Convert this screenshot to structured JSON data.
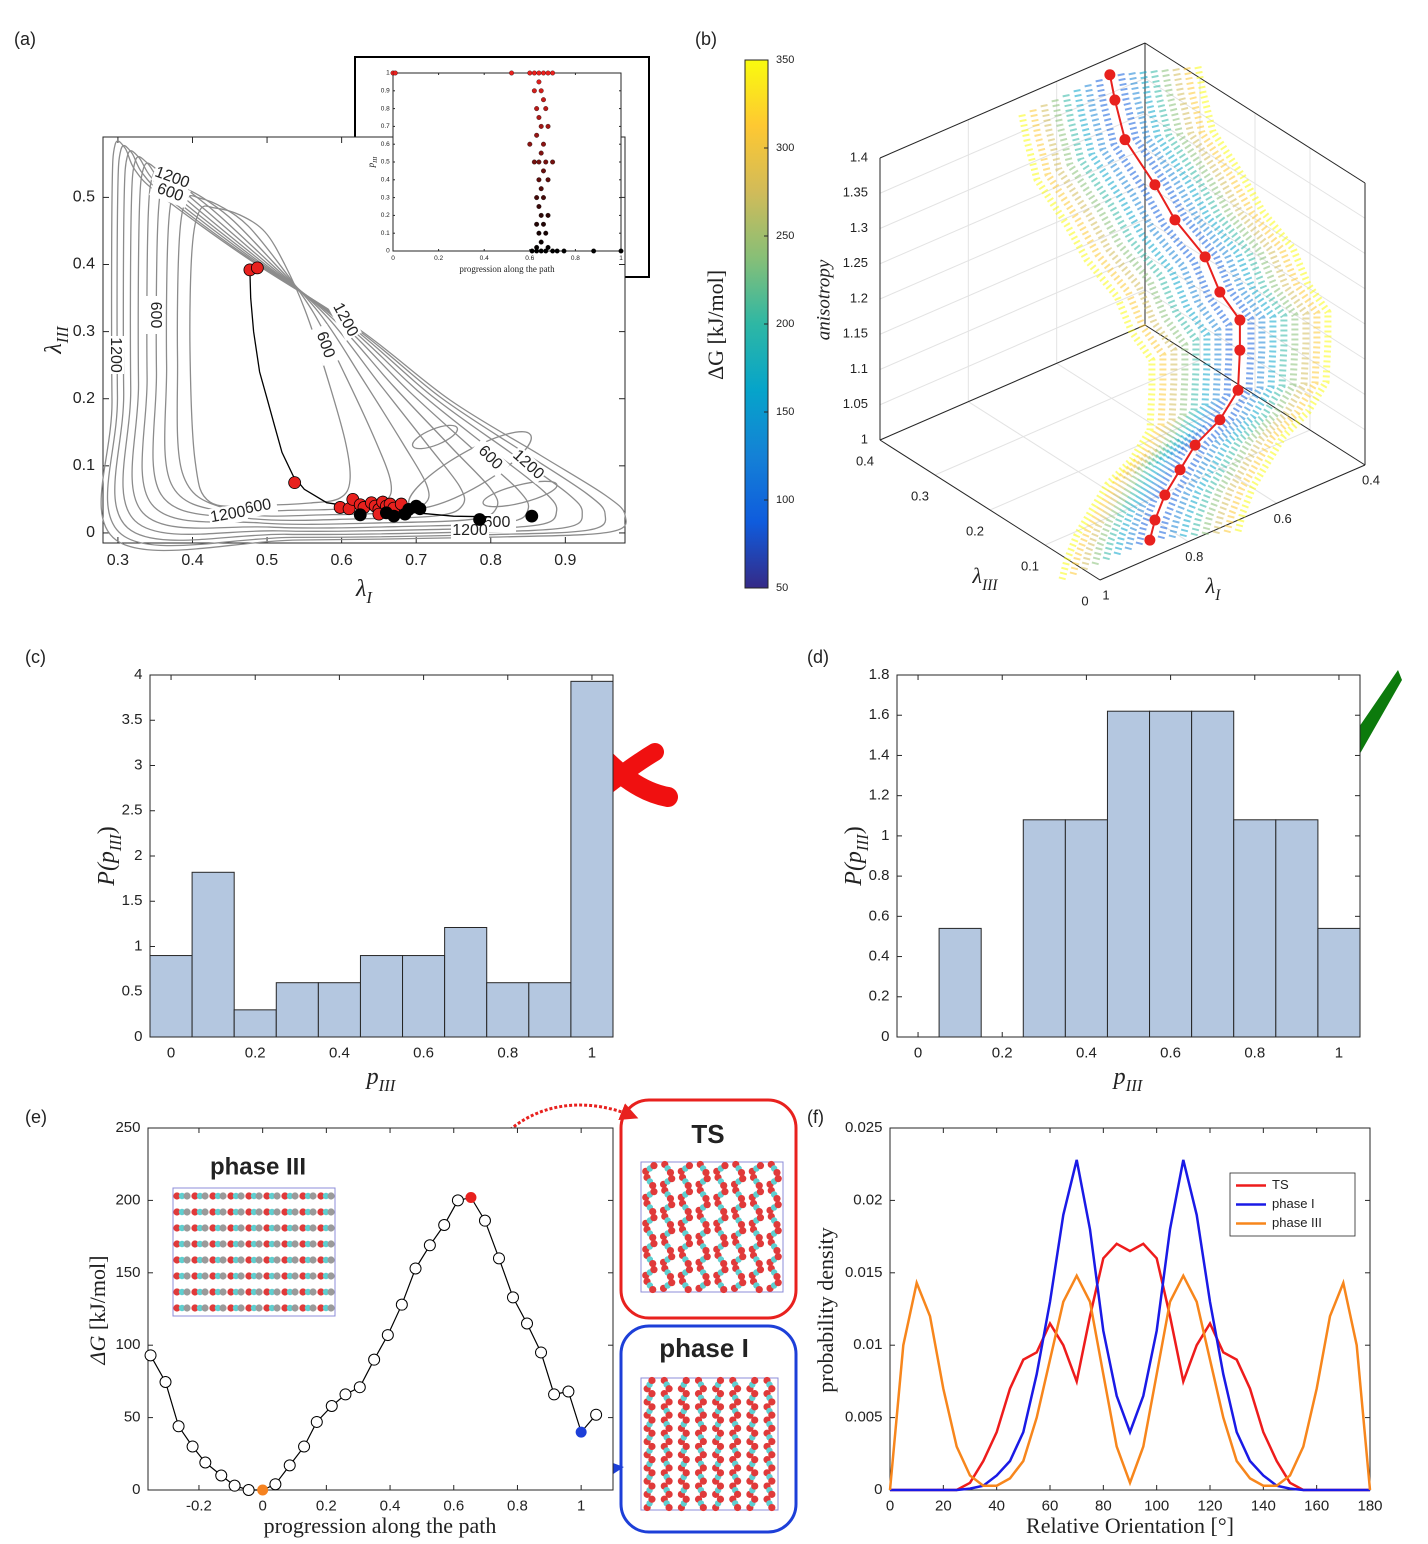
{
  "chart_data": [
    {
      "type": "contour",
      "panel": "(a)",
      "xlabel": {
        "text": "λ",
        "sub": "I"
      },
      "ylabel": {
        "text": "λ",
        "sub": "III"
      },
      "xlim": [
        0.28,
        0.98
      ],
      "ylim": [
        -0.015,
        0.59
      ],
      "xticks": [
        0.3,
        0.4,
        0.5,
        0.6,
        0.7,
        0.8,
        0.9
      ],
      "yticks": [
        0,
        0.1,
        0.2,
        0.3,
        0.4,
        0.5
      ],
      "contour_labels": [
        1200,
        600,
        600,
        1200,
        1200,
        600,
        600,
        1200,
        600,
        1200,
        600,
        1200
      ],
      "path": {
        "color": "#000000",
        "x": [
          0.477,
          0.478,
          0.482,
          0.49,
          0.5,
          0.51,
          0.52,
          0.535,
          0.55,
          0.58,
          0.62,
          0.66,
          0.7,
          0.75,
          0.8
        ],
        "y": [
          0.39,
          0.35,
          0.3,
          0.24,
          0.2,
          0.16,
          0.12,
          0.085,
          0.065,
          0.045,
          0.038,
          0.035,
          0.03,
          0.025,
          0.024
        ]
      },
      "points": [
        {
          "color": "#e8211e",
          "x": [
            0.477,
            0.487,
            0.537,
            0.598,
            0.61,
            0.615,
            0.625,
            0.63,
            0.64,
            0.645,
            0.65,
            0.655,
            0.66,
            0.665,
            0.67,
            0.68,
            0.65
          ],
          "y": [
            0.392,
            0.395,
            0.075,
            0.038,
            0.036,
            0.05,
            0.042,
            0.038,
            0.045,
            0.04,
            0.035,
            0.046,
            0.04,
            0.043,
            0.037,
            0.043,
            0.028
          ]
        },
        {
          "color": "#000000",
          "x": [
            0.625,
            0.66,
            0.67,
            0.685,
            0.7,
            0.705,
            0.785,
            0.855,
            0.69
          ],
          "y": [
            0.027,
            0.03,
            0.025,
            0.028,
            0.04,
            0.036,
            0.02,
            0.025,
            0.035
          ]
        }
      ]
    },
    {
      "type": "scatter",
      "xlabel": "progression along the path",
      "ylabel": {
        "text": "p",
        "sub": "III"
      },
      "xlim": [
        0,
        1
      ],
      "ylim": [
        0,
        1
      ],
      "xticks": [
        0,
        0.2,
        0.4,
        0.6,
        0.8,
        1
      ],
      "yticks": [
        0,
        0.1,
        0.2,
        0.3,
        0.4,
        0.5,
        0.6,
        0.7,
        0.8,
        0.9,
        1
      ],
      "colors": [
        "#000000",
        "#e8211e"
      ],
      "x": [
        0,
        0.01,
        0.52,
        0.6,
        0.62,
        0.64,
        0.66,
        0.68,
        0.7,
        0.64,
        0.62,
        0.65,
        0.66,
        0.63,
        0.67,
        0.64,
        0.65,
        0.68,
        0.63,
        0.6,
        0.66,
        0.65,
        0.62,
        0.64,
        0.67,
        0.7,
        0.66,
        0.64,
        0.68,
        0.65,
        0.63,
        0.66,
        0.64,
        0.65,
        0.68,
        0.63,
        0.66,
        0.64,
        0.67,
        0.65,
        0.63,
        0.68,
        0.61,
        0.63,
        0.65,
        0.67,
        0.7,
        0.72,
        0.75,
        0.88,
        1
      ],
      "y": [
        1,
        1,
        1,
        1,
        1,
        1,
        1,
        1,
        1,
        0.95,
        0.9,
        0.9,
        0.85,
        0.8,
        0.8,
        0.75,
        0.7,
        0.7,
        0.65,
        0.6,
        0.6,
        0.55,
        0.5,
        0.5,
        0.5,
        0.5,
        0.45,
        0.4,
        0.4,
        0.35,
        0.3,
        0.3,
        0.25,
        0.2,
        0.2,
        0.15,
        0.15,
        0.1,
        0.1,
        0.05,
        0.02,
        0.02,
        0,
        0,
        0,
        0,
        0,
        0,
        0,
        0,
        0
      ]
    },
    {
      "type": "surface3d",
      "panel": "(b)",
      "xlabel": {
        "text": "λ",
        "sub": "I"
      },
      "ylabel": {
        "text": "λ",
        "sub": "III"
      },
      "zlabel": "anisotropy",
      "xlim": [
        0.4,
        1
      ],
      "ylim": [
        0,
        0.4
      ],
      "zlim": [
        1,
        1.4
      ],
      "xticks": [
        0.4,
        0.6,
        0.8,
        1
      ],
      "yticks": [
        0,
        0.1,
        0.2,
        0.3,
        0.4
      ],
      "zticks": [
        1,
        1.05,
        1.1,
        1.15,
        1.2,
        1.25,
        1.3,
        1.35,
        1.4
      ],
      "path_color": "#e8211e",
      "x": [
        0.492,
        0.518,
        0.545,
        0.527,
        0.519,
        0.488,
        0.492,
        0.484,
        0.509,
        0.538,
        0.604,
        0.685,
        0.744,
        0.797,
        0.832,
        0.856
      ],
      "y": [
        0.39,
        0.36,
        0.32,
        0.28,
        0.25,
        0.22,
        0.19,
        0.16,
        0.14,
        0.12,
        0.1,
        0.08,
        0.06,
        0.045,
        0.035,
        0.025
      ],
      "z": [
        1.385,
        1.371,
        1.342,
        1.293,
        1.256,
        1.21,
        1.176,
        1.149,
        1.123,
        1.084,
        1.07,
        1.066,
        1.057,
        1.043,
        1.022,
        1.005
      ],
      "colorbar": {
        "label": "ΔG [kJ/mol]",
        "clim": [
          50,
          350
        ],
        "ticks": [
          50,
          100,
          150,
          200,
          250,
          300,
          350
        ],
        "colormap": [
          "#352a87",
          "#0f5cdd",
          "#1481d6",
          "#06a4ca",
          "#2eb7a4",
          "#87bf77",
          "#d1bb59",
          "#fec832",
          "#f9fb0e"
        ]
      }
    },
    {
      "type": "histogram",
      "panel": "(c)",
      "xlabel": {
        "text": "p",
        "sub": "III"
      },
      "ylabel": {
        "text": "P(p",
        "sub": "III",
        "post": ")"
      },
      "bins": [
        -0.05,
        0.05,
        0.15,
        0.25,
        0.35,
        0.45,
        0.55,
        0.65,
        0.75,
        0.85,
        0.95,
        1.05
      ],
      "counts": [
        0.9,
        1.82,
        0.3,
        0.6,
        0.6,
        0.9,
        0.9,
        1.21,
        0.6,
        0.6,
        3.93
      ],
      "color": "#b4c7e0",
      "xlim": [
        -0.05,
        1.05
      ],
      "ylim": [
        0,
        4
      ],
      "xticks": [
        0,
        0.2,
        0.4,
        0.6,
        0.8,
        1
      ],
      "yticks": [
        0,
        0.5,
        1,
        1.5,
        2,
        2.5,
        3,
        3.5,
        4
      ]
    },
    {
      "type": "histogram",
      "panel": "(d)",
      "xlabel": {
        "text": "p",
        "sub": "III"
      },
      "ylabel": {
        "text": "P(p",
        "sub": "III",
        "post": ")"
      },
      "bins": [
        -0.05,
        0.05,
        0.15,
        0.25,
        0.35,
        0.45,
        0.55,
        0.65,
        0.75,
        0.85,
        0.95,
        1.05
      ],
      "counts": [
        0,
        0.54,
        0,
        1.08,
        1.08,
        1.62,
        1.62,
        1.62,
        1.08,
        1.08,
        0.54
      ],
      "color": "#b4c7e0",
      "xlim": [
        -0.05,
        1.05
      ],
      "ylim": [
        0,
        1.8
      ],
      "xticks": [
        0,
        0.2,
        0.4,
        0.6,
        0.8,
        1
      ],
      "yticks": [
        0,
        0.2,
        0.4,
        0.6,
        0.8,
        1,
        1.2,
        1.4,
        1.6,
        1.8
      ]
    },
    {
      "type": "line",
      "panel": "(e)",
      "xlabel": "progression along the path",
      "ylabel": {
        "text": "ΔG",
        "post": " [kJ/mol]"
      },
      "xlim": [
        -0.36,
        1.1
      ],
      "ylim": [
        0,
        250
      ],
      "xticks": [
        -0.2,
        0,
        0.2,
        0.4,
        0.6,
        0.8,
        1
      ],
      "yticks": [
        0,
        50,
        100,
        150,
        200,
        250
      ],
      "markers": true,
      "annotations": [
        "phase III",
        "TS",
        "phase I"
      ],
      "x": [
        -0.352,
        -0.305,
        -0.264,
        -0.22,
        -0.18,
        -0.13,
        -0.088,
        -0.044,
        0,
        0.04,
        0.085,
        0.13,
        0.17,
        0.217,
        0.26,
        0.305,
        0.35,
        0.393,
        0.437,
        0.48,
        0.525,
        0.57,
        0.613,
        0.654,
        0.698,
        0.742,
        0.786,
        0.83,
        0.874,
        0.915,
        0.96,
        1,
        1.047
      ],
      "series": [
        {
          "color": "#000000",
          "values": [
            93,
            74.6,
            44,
            30,
            19,
            10,
            3,
            0,
            0,
            4,
            17,
            30,
            47,
            58,
            66,
            71,
            90,
            107,
            128,
            153,
            169,
            183,
            200,
            202,
            186,
            160,
            133,
            115,
            95,
            66,
            68,
            40,
            52
          ],
          "marker_colors": [
            "none",
            "none",
            "none",
            "none",
            "none",
            "none",
            "none",
            "none",
            "#f58220",
            "none",
            "none",
            "none",
            "none",
            "none",
            "none",
            "none",
            "none",
            "none",
            "none",
            "none",
            "none",
            "none",
            "none",
            "#e8211e",
            "none",
            "none",
            "none",
            "none",
            "none",
            "none",
            "none",
            "#1d3fd8",
            "none"
          ]
        }
      ]
    },
    {
      "type": "line",
      "panel": "(f)",
      "xlabel": "Relative Orientation [°]",
      "ylabel": "probability density",
      "xlim": [
        0,
        180
      ],
      "ylim": [
        0,
        0.025
      ],
      "xticks": [
        0,
        20,
        40,
        60,
        80,
        100,
        120,
        140,
        160,
        180
      ],
      "yticks": [
        0,
        0.005,
        0.01,
        0.015,
        0.02,
        0.025
      ],
      "legend": "upper right",
      "x": [
        0,
        5,
        10,
        15,
        20,
        25,
        30,
        35,
        40,
        45,
        50,
        55,
        60,
        65,
        70,
        75,
        80,
        85,
        90,
        95,
        100,
        105,
        110,
        115,
        120,
        125,
        130,
        135,
        140,
        145,
        150,
        155,
        160,
        165,
        170,
        175,
        180
      ],
      "series": [
        {
          "name": "TS",
          "color": "#ee1c1c",
          "values": [
            0,
            0,
            0,
            0,
            0,
            0,
            0.0005,
            0.002,
            0.004,
            0.007,
            0.009,
            0.0095,
            0.0115,
            0.01,
            0.0075,
            0.012,
            0.016,
            0.017,
            0.0165,
            0.017,
            0.016,
            0.012,
            0.0075,
            0.01,
            0.0115,
            0.0095,
            0.009,
            0.007,
            0.004,
            0.002,
            0.0005,
            0,
            0,
            0,
            0,
            0,
            0
          ]
        },
        {
          "name": "phase I",
          "color": "#1a1ae6",
          "values": [
            0,
            0,
            0,
            0,
            0,
            0,
            0.0001,
            0.0003,
            0.001,
            0.002,
            0.004,
            0.008,
            0.013,
            0.019,
            0.0228,
            0.018,
            0.011,
            0.0065,
            0.004,
            0.0065,
            0.011,
            0.018,
            0.0228,
            0.019,
            0.013,
            0.008,
            0.004,
            0.002,
            0.001,
            0.0003,
            0.0001,
            0,
            0,
            0,
            0,
            0,
            0
          ]
        },
        {
          "name": "phase III",
          "color": "#f7861c",
          "values": [
            0,
            0.01,
            0.0143,
            0.012,
            0.007,
            0.003,
            0.001,
            0.0003,
            0.0003,
            0.0008,
            0.002,
            0.005,
            0.009,
            0.013,
            0.0148,
            0.013,
            0.008,
            0.003,
            0.0005,
            0.003,
            0.008,
            0.013,
            0.0148,
            0.013,
            0.009,
            0.005,
            0.002,
            0.0008,
            0.0003,
            0.0003,
            0.001,
            0.003,
            0.007,
            0.012,
            0.0143,
            0.01,
            0
          ]
        }
      ]
    }
  ]
}
